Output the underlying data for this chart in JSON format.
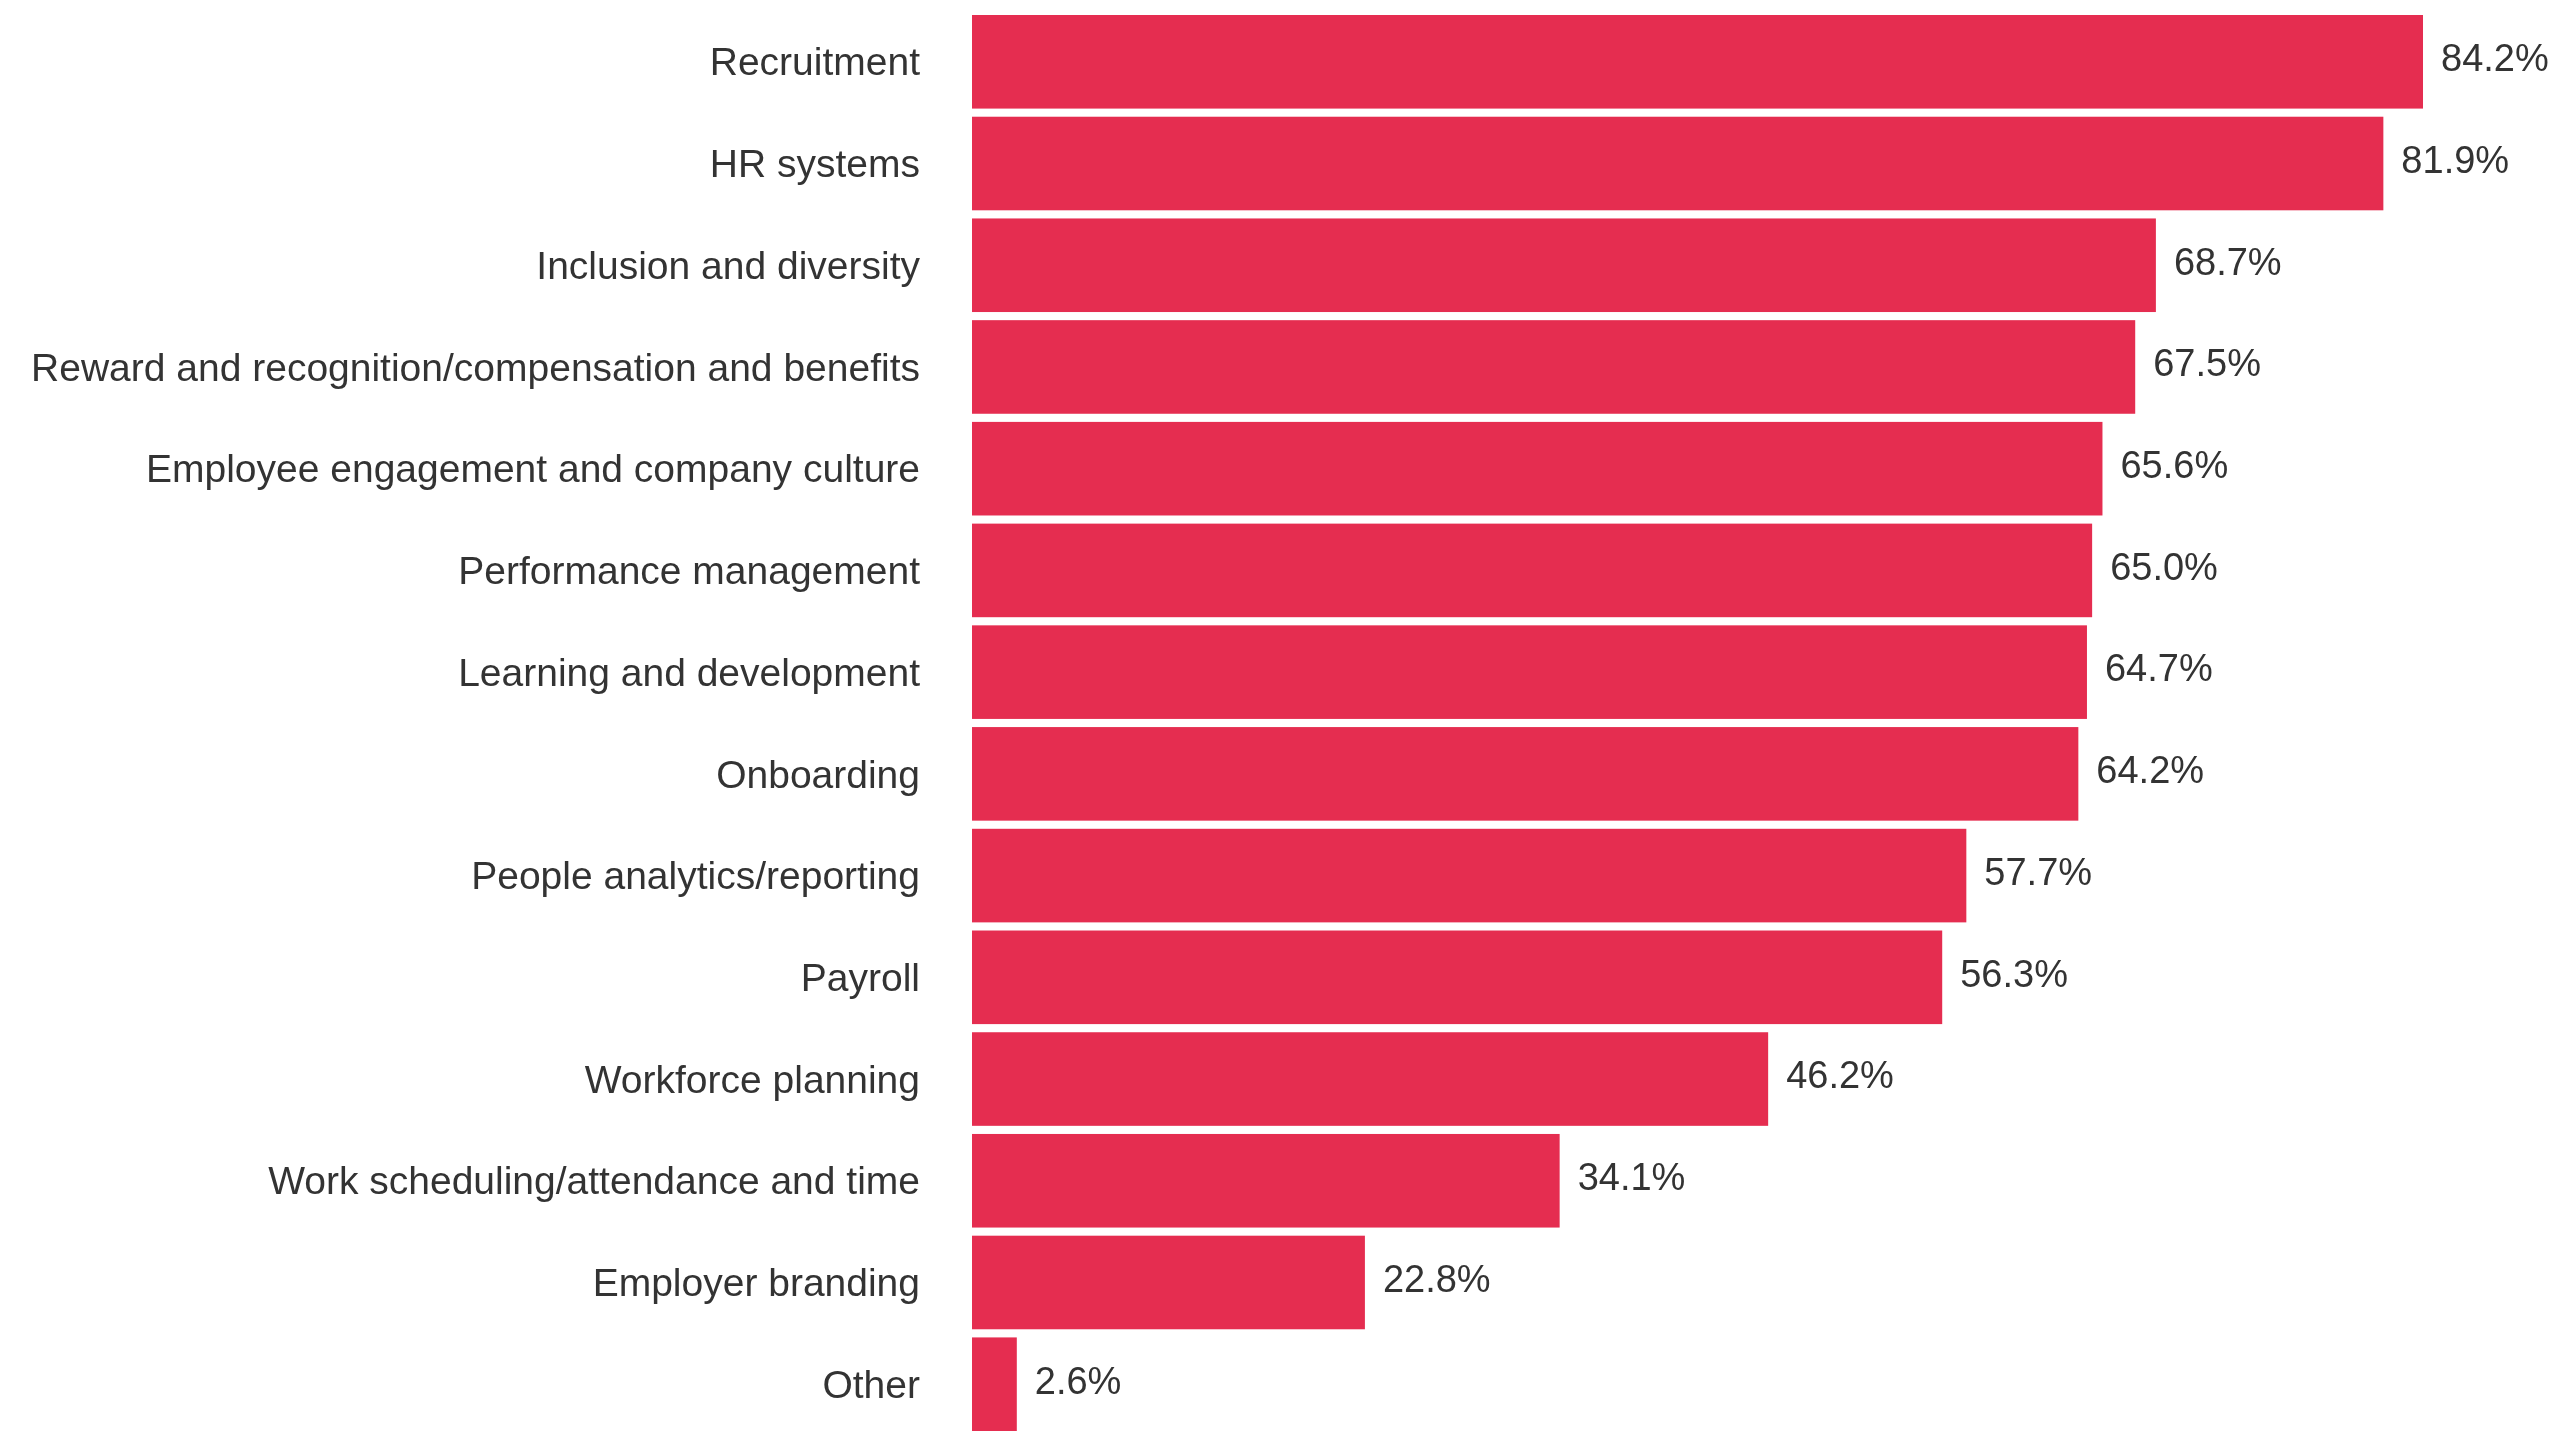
{
  "chart_data": {
    "type": "bar",
    "orientation": "horizontal",
    "categories": [
      "Recruitment",
      "HR systems",
      "Inclusion and diversity",
      "Reward and recognition/compensation and benefits",
      "Employee engagement and company culture",
      "Performance management",
      "Learning and development",
      "Onboarding",
      "People analytics/reporting",
      "Payroll",
      "Workforce planning",
      "Work scheduling/attendance and time",
      "Employer branding",
      "Other"
    ],
    "values": [
      84.2,
      81.9,
      68.7,
      67.5,
      65.6,
      65.0,
      64.7,
      64.2,
      57.7,
      56.3,
      46.2,
      34.1,
      22.8,
      2.6
    ],
    "value_labels": [
      "84.2%",
      "81.9%",
      "68.7%",
      "67.5%",
      "65.6%",
      "65.0%",
      "64.7%",
      "64.2%",
      "57.7%",
      "56.3%",
      "46.2%",
      "34.1%",
      "22.8%",
      "2.6%"
    ],
    "color": "#e52d50"
  }
}
